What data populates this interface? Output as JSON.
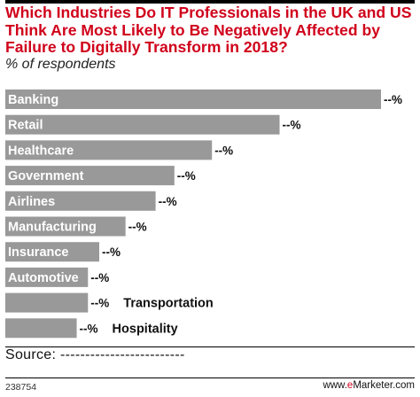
{
  "header": {
    "title": "Which Industries Do IT Professionals in the UK and US Think Are Most Likely to Be Negatively Affected by Failure to Digitally Transform in 2018?",
    "subtitle": "% of respondents"
  },
  "chart_data": {
    "type": "bar",
    "orientation": "horizontal",
    "title": "Which Industries Do IT Professionals in the UK and US Think Are Most Likely to Be Negatively Affected by Failure to Digitally Transform in 2018?",
    "subtitle": "% of respondents",
    "categories": [
      "Banking",
      "Retail",
      "Healthcare",
      "Government",
      "Airlines",
      "Manufacturing",
      "Insurance",
      "Automotive",
      "Transportation",
      "Hospitality"
    ],
    "values": [
      100,
      73,
      55,
      45,
      40,
      32,
      25,
      22,
      22,
      19
    ],
    "value_labels": [
      "--%",
      "--%",
      "--%",
      "--%",
      "--%",
      "--%",
      "--%",
      "--%",
      "--%",
      "--%"
    ],
    "bar_color": "#999999",
    "grid": false,
    "legend": "none"
  },
  "footer": {
    "source": "Source: -------------------------",
    "chart_id": "238754",
    "brand_prefix": "www.",
    "brand_e": "e",
    "brand_rest": "Marketer.com"
  }
}
